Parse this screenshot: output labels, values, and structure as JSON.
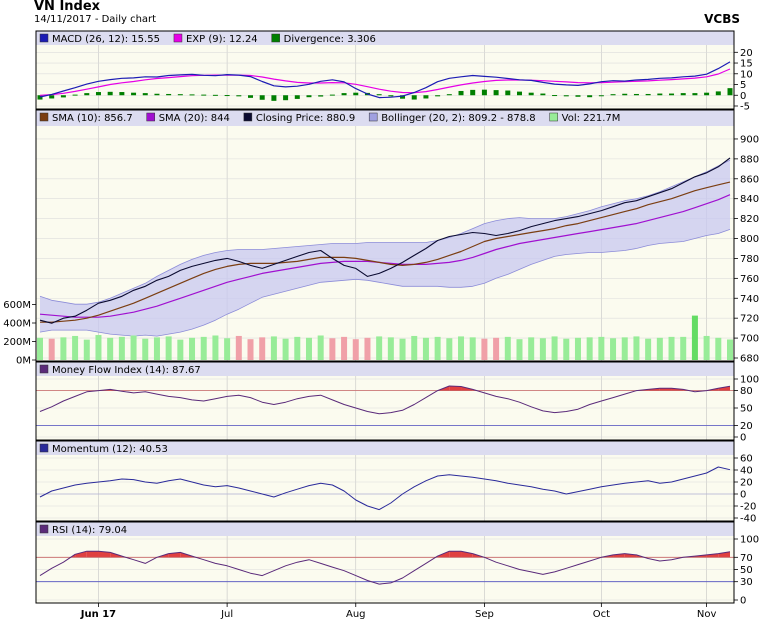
{
  "header": {
    "title": "VN Index",
    "subtitle": "14/11/2017 - Daily chart",
    "brand": "VCBS"
  },
  "colors": {
    "panel_bg": "#fbfbef",
    "legend_bg": "#dcdcf0",
    "macd": "#1c1cb4",
    "exp": "#e600e6",
    "divergence": "#007f00",
    "sma10": "#7b3e12",
    "sma20": "#a010d0",
    "close": "#0a0a30",
    "bollinger_fill": "#c8c8f0",
    "bollinger_line": "#8c8cd8",
    "vol_up": "#98ec98",
    "vol_down": "#f0a0a8",
    "vol_spike": "#64dc64",
    "mfi": "#5a2a7a",
    "momentum": "#2a2a9a",
    "rsi": "#5a2a7a",
    "overbought_fill": "#e04040",
    "ref_line": "#c86464",
    "low_line": "#5050c0"
  },
  "chart_data": [
    {
      "id": "macd",
      "type": "line",
      "legend": [
        {
          "label": "MACD (26, 12): 15.55",
          "swatch": "#1c1cb4"
        },
        {
          "label": "EXP (9): 12.24",
          "swatch": "#e600e6"
        },
        {
          "label": "Divergence: 3.306",
          "swatch": "#007f00"
        }
      ],
      "ylim": [
        -5,
        22
      ],
      "ticks": [
        -5,
        0,
        5,
        10,
        15,
        20
      ],
      "series": [
        {
          "name": "MACD",
          "values": [
            -0.8,
            0.4,
            2,
            3.5,
            5.2,
            6.5,
            7.3,
            7.9,
            8.1,
            8.6,
            8.5,
            9.2,
            9.5,
            9.7,
            9.3,
            9.1,
            9.6,
            9.4,
            8.7,
            6.4,
            4.4,
            3.9,
            4.2,
            5.1,
            6.5,
            7.2,
            6.2,
            3.1,
            0.6,
            -1.1,
            -0.9,
            -0.4,
            1.3,
            3.5,
            6.3,
            7.9,
            8.6,
            9.2,
            8.8,
            8.4,
            7.8,
            7.2,
            6.9,
            6,
            5.2,
            4.8,
            4.6,
            5.3,
            6.3,
            6.8,
            6.6,
            7.1,
            7.4,
            7.9,
            8.1,
            8.6,
            8.9,
            9.8,
            12.4,
            15.55
          ]
        },
        {
          "name": "EXP",
          "values": [
            0,
            0.3,
            0.9,
            1.8,
            2.8,
            3.9,
            5,
            5.8,
            6.4,
            7.2,
            7.8,
            8.2,
            8.7,
            9.1,
            9.3,
            9.4,
            9.4,
            9.4,
            9.2,
            8.5,
            7.5,
            6.7,
            6,
            5.7,
            5.7,
            5.9,
            5.8,
            5.1,
            4,
            2.8,
            1.9,
            1.3,
            1.2,
            1.7,
            2.7,
            3.8,
            4.8,
            5.7,
            6.4,
            6.9,
            7.1,
            7.1,
            7,
            6.8,
            6.5,
            6.2,
            5.9,
            5.8,
            5.9,
            6.1,
            6.3,
            6.5,
            6.7,
            7,
            7.3,
            7.6,
            8,
            8.6,
            9.9,
            12.24
          ]
        },
        {
          "name": "Divergence",
          "values": [
            -2,
            -1.5,
            -1,
            0.3,
            1,
            1.5,
            1.6,
            1.5,
            1.2,
            1,
            0.7,
            0.6,
            0.5,
            0.4,
            0.3,
            0.2,
            0.1,
            -0.5,
            -1.2,
            -2.1,
            -2.6,
            -2.3,
            -1.7,
            -0.9,
            -0.6,
            0.3,
            1,
            1.2,
            1.1,
            0.5,
            -0.5,
            -1.6,
            -2,
            -1.5,
            -0.5,
            0.5,
            2,
            2.5,
            2.6,
            2.4,
            2.2,
            1.7,
            1.2,
            0.8,
            0.1,
            -0.5,
            -0.7,
            -0.9,
            -0.3,
            0.5,
            0.7,
            0.6,
            0.6,
            0.8,
            0.8,
            1,
            1,
            1.2,
            1.8,
            3.306
          ]
        }
      ]
    },
    {
      "id": "price",
      "type": "line",
      "legend": [
        {
          "label": "SMA (10): 856.7",
          "swatch": "#7b3e12"
        },
        {
          "label": "SMA (20): 844",
          "swatch": "#a010d0"
        },
        {
          "label": "Closing Price: 880.9",
          "swatch": "#0a0a30"
        },
        {
          "label": "Bollinger (20, 2): 809.2 - 878.8",
          "swatch": "#a0a0e0"
        },
        {
          "label": "Vol: 221.7M",
          "swatch": "#98ec98"
        }
      ],
      "ylim": [
        680,
        910
      ],
      "ticks": [
        680,
        700,
        720,
        740,
        760,
        780,
        800,
        820,
        840,
        860,
        880,
        900
      ],
      "volume_ylim": [
        0,
        800
      ],
      "volume_ticks": [
        {
          "v": 0,
          "label": "0M"
        },
        {
          "v": 200,
          "label": "200M"
        },
        {
          "v": 400,
          "label": "400M"
        },
        {
          "v": 600,
          "label": "600M"
        }
      ],
      "series": [
        {
          "name": "Closing Price",
          "values": [
            718,
            715,
            720,
            722,
            728,
            735,
            738,
            742,
            748,
            752,
            758,
            762,
            768,
            772,
            775,
            778,
            780,
            777,
            773,
            770,
            774,
            778,
            782,
            786,
            788,
            780,
            773,
            770,
            762,
            765,
            770,
            776,
            783,
            790,
            798,
            802,
            804,
            806,
            805,
            803,
            805,
            808,
            812,
            815,
            818,
            820,
            822,
            825,
            828,
            832,
            836,
            838,
            842,
            846,
            850,
            856,
            862,
            866,
            872,
            880.9
          ]
        },
        {
          "name": "SMA (10)",
          "values": [
            716,
            716,
            717,
            718,
            720,
            723,
            727,
            731,
            735,
            740,
            745,
            750,
            755,
            760,
            765,
            769,
            772,
            774,
            775,
            775,
            775,
            776,
            777,
            779,
            781,
            781,
            781,
            780,
            778,
            776,
            774,
            773,
            774,
            776,
            779,
            783,
            787,
            792,
            797,
            800,
            802,
            804,
            806,
            808,
            810,
            813,
            815,
            818,
            821,
            824,
            827,
            830,
            834,
            837,
            840,
            844,
            848,
            851,
            854,
            856.7
          ]
        },
        {
          "name": "SMA (20)",
          "values": [
            724,
            723,
            722,
            721,
            721,
            721,
            722,
            724,
            726,
            729,
            732,
            736,
            740,
            744,
            748,
            752,
            756,
            759,
            762,
            765,
            767,
            769,
            771,
            773,
            775,
            776,
            777,
            777,
            777,
            776,
            775,
            774,
            774,
            774,
            775,
            776,
            778,
            781,
            785,
            789,
            792,
            795,
            797,
            799,
            801,
            803,
            805,
            807,
            809,
            811,
            813,
            815,
            818,
            821,
            824,
            827,
            831,
            835,
            839,
            844
          ]
        },
        {
          "name": "Bollinger Upper",
          "values": [
            742,
            738,
            736,
            734,
            734,
            736,
            740,
            745,
            750,
            755,
            762,
            768,
            774,
            779,
            783,
            786,
            788,
            789,
            789,
            789,
            790,
            791,
            792,
            793,
            794,
            795,
            795,
            795,
            796,
            796,
            796,
            796,
            796,
            796,
            798,
            801,
            805,
            810,
            815,
            818,
            820,
            821,
            820,
            820,
            820,
            822,
            825,
            828,
            832,
            835,
            838,
            840,
            843,
            847,
            852,
            857,
            862,
            867,
            873,
            878.8
          ]
        },
        {
          "name": "Bollinger Lower",
          "values": [
            706,
            708,
            708,
            708,
            708,
            706,
            704,
            703,
            702,
            703,
            702,
            704,
            706,
            709,
            713,
            718,
            724,
            729,
            735,
            741,
            744,
            747,
            750,
            753,
            756,
            757,
            758,
            759,
            758,
            756,
            754,
            752,
            752,
            752,
            752,
            751,
            751,
            752,
            755,
            760,
            764,
            769,
            774,
            778,
            782,
            784,
            785,
            786,
            786,
            787,
            788,
            790,
            793,
            795,
            796,
            797,
            800,
            803,
            805,
            809.2
          ]
        },
        {
          "name": "Volume",
          "values": [
            240,
            230,
            245,
            260,
            220,
            270,
            240,
            250,
            265,
            230,
            245,
            255,
            220,
            240,
            250,
            265,
            235,
            260,
            225,
            245,
            255,
            230,
            250,
            240,
            265,
            235,
            250,
            225,
            240,
            255,
            245,
            230,
            260,
            240,
            250,
            235,
            255,
            245,
            230,
            240,
            250,
            225,
            245,
            235,
            255,
            230,
            240,
            245,
            250,
            235,
            245,
            255,
            230,
            240,
            250,
            250,
            480,
            260,
            240,
            221.7
          ]
        }
      ]
    },
    {
      "id": "mfi",
      "type": "line",
      "legend": [
        {
          "label": "Money Flow Index (14): 87.67",
          "swatch": "#5a2a7a"
        }
      ],
      "ylim": [
        0,
        100
      ],
      "ticks": [
        0,
        20,
        50,
        80,
        100
      ],
      "ref_high": 80,
      "ref_low": 20,
      "series": [
        {
          "name": "MFI",
          "values": [
            44,
            52,
            62,
            70,
            78,
            80,
            82,
            79,
            76,
            78,
            74,
            70,
            68,
            64,
            62,
            66,
            70,
            72,
            68,
            60,
            56,
            60,
            66,
            70,
            72,
            64,
            56,
            50,
            44,
            40,
            42,
            46,
            56,
            68,
            80,
            88,
            87,
            82,
            76,
            70,
            66,
            60,
            52,
            45,
            42,
            44,
            48,
            56,
            62,
            68,
            74,
            80,
            82,
            84,
            84,
            82,
            78,
            80,
            84,
            87.67
          ]
        }
      ]
    },
    {
      "id": "momentum",
      "type": "line",
      "legend": [
        {
          "label": "Momentum (12): 40.53",
          "swatch": "#2a2a9a"
        }
      ],
      "ylim": [
        -40,
        60
      ],
      "ticks": [
        -40,
        -20,
        0,
        20,
        40,
        60
      ],
      "series": [
        {
          "name": "Momentum",
          "values": [
            -5,
            5,
            10,
            15,
            18,
            20,
            22,
            25,
            24,
            20,
            18,
            22,
            25,
            20,
            15,
            12,
            14,
            10,
            5,
            0,
            -5,
            2,
            8,
            14,
            18,
            15,
            5,
            -10,
            -20,
            -26,
            -15,
            0,
            12,
            22,
            30,
            32,
            30,
            28,
            25,
            22,
            18,
            15,
            12,
            8,
            5,
            0,
            4,
            8,
            12,
            15,
            18,
            20,
            22,
            18,
            20,
            25,
            30,
            35,
            45,
            40.53
          ]
        }
      ]
    },
    {
      "id": "rsi",
      "type": "line",
      "legend": [
        {
          "label": "RSI (14): 79.04",
          "swatch": "#5a2a7a"
        }
      ],
      "ylim": [
        0,
        100
      ],
      "ticks": [
        0,
        30,
        50,
        70,
        100
      ],
      "ref_high": 70,
      "ref_low": 30,
      "series": [
        {
          "name": "RSI",
          "values": [
            40,
            52,
            62,
            75,
            80,
            80,
            78,
            72,
            66,
            60,
            70,
            76,
            78,
            72,
            66,
            60,
            56,
            50,
            44,
            40,
            48,
            56,
            62,
            66,
            60,
            54,
            48,
            40,
            32,
            26,
            28,
            36,
            48,
            60,
            72,
            80,
            80,
            76,
            70,
            62,
            56,
            50,
            46,
            42,
            46,
            52,
            58,
            64,
            70,
            74,
            76,
            74,
            68,
            64,
            66,
            70,
            72,
            74,
            76,
            79.04
          ]
        }
      ]
    }
  ],
  "x_axis": {
    "labels": [
      {
        "label": "Jun 17",
        "pos": 5
      },
      {
        "label": "Jul",
        "pos": 16
      },
      {
        "label": "Aug",
        "pos": 27
      },
      {
        "label": "Sep",
        "pos": 38
      },
      {
        "label": "Oct",
        "pos": 48
      },
      {
        "label": "Nov",
        "pos": 57
      }
    ]
  }
}
